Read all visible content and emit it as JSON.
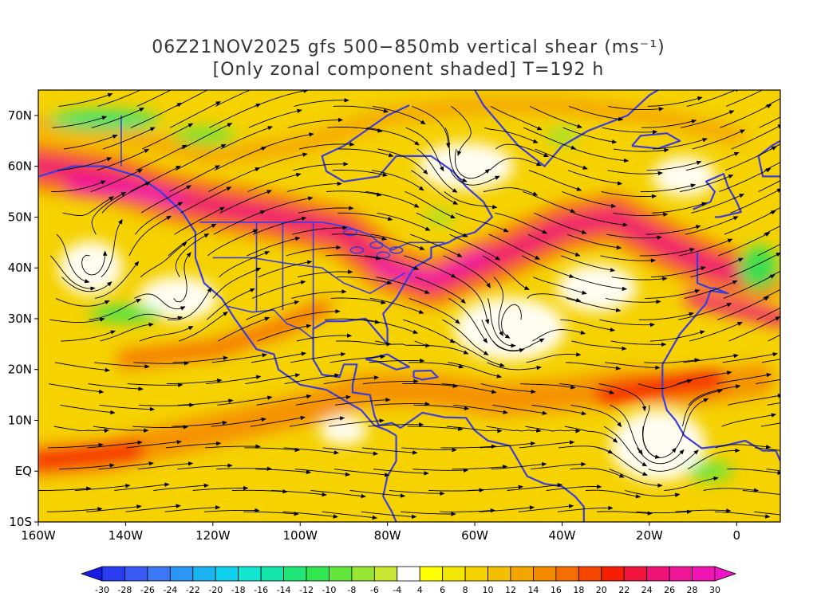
{
  "title": {
    "line1": "06Z21NOV2025 gfs 500−850mb vertical shear (ms⁻¹)",
    "line2": "[Only zonal component shaded] T=192 h"
  },
  "axes": {
    "lat_labels": [
      "70N",
      "60N",
      "50N",
      "40N",
      "30N",
      "20N",
      "10N",
      "EQ",
      "10S"
    ],
    "lon_labels": [
      "160W",
      "140W",
      "120W",
      "100W",
      "80W",
      "60W",
      "40W",
      "20W",
      "0"
    ]
  },
  "map_extent": {
    "lon_min": -160,
    "lon_max": 10,
    "lat_min": -10,
    "lat_max": 75
  },
  "colorbar": {
    "ticks": [
      "-30",
      "-28",
      "-26",
      "-24",
      "-22",
      "-20",
      "-18",
      "-16",
      "-14",
      "-12",
      "-10",
      "-8",
      "-6",
      "-4",
      "4",
      "6",
      "8",
      "10",
      "12",
      "14",
      "16",
      "18",
      "20",
      "22",
      "24",
      "26",
      "28",
      "30"
    ],
    "colors": [
      "#1a1ae6",
      "#2a3cf0",
      "#3a5af5",
      "#3c78f5",
      "#2a96f5",
      "#1ab4f0",
      "#10d2f0",
      "#10e6d2",
      "#14e6aa",
      "#20e678",
      "#32e650",
      "#64e63c",
      "#96e632",
      "#c8e632",
      "#ffffff",
      "#ffff00",
      "#f5e600",
      "#f5d200",
      "#f5be00",
      "#f5a500",
      "#f58c00",
      "#f56e00",
      "#f54600",
      "#f51e00",
      "#f0143c",
      "#f01478",
      "#f01496",
      "#f014b4",
      "#f014c8"
    ]
  },
  "colors": {
    "coast": "#3c3cdc",
    "streamline": "#000000",
    "frame": "#000000"
  }
}
